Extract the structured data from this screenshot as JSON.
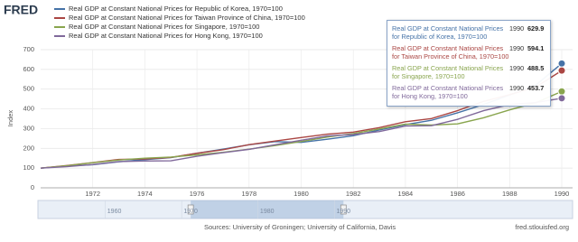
{
  "logo": "FRED",
  "chart_data": {
    "type": "line",
    "x": [
      1970,
      1971,
      1972,
      1973,
      1974,
      1975,
      1976,
      1977,
      1978,
      1979,
      1980,
      1981,
      1982,
      1983,
      1984,
      1985,
      1986,
      1987,
      1988,
      1989,
      1990
    ],
    "series": [
      {
        "name": "Real GDP at Constant National Prices for Republic of Korea, 1970=100",
        "color": "#4572a7",
        "values": [
          100,
          110,
          117,
          132,
          143,
          153,
          175,
          196,
          218,
          234,
          230,
          246,
          264,
          293,
          320,
          342,
          380,
          422,
          470,
          520,
          629.9
        ]
      },
      {
        "name": "Real GDP at Constant National Prices for Taiwan Province of China, 1970=100",
        "color": "#aa4643",
        "values": [
          100,
          113,
          128,
          144,
          146,
          154,
          175,
          193,
          219,
          237,
          255,
          272,
          282,
          305,
          335,
          351,
          391,
          438,
          472,
          510,
          594.1
        ]
      },
      {
        "name": "Real GDP at Constant National Prices for Singapore, 1970=100",
        "color": "#89a54e",
        "values": [
          100,
          112,
          127,
          141,
          150,
          156,
          167,
          180,
          196,
          214,
          235,
          257,
          275,
          298,
          323,
          318,
          324,
          355,
          395,
          431,
          488.5
        ]
      },
      {
        "name": "Real GDP at Constant National Prices for Hong Kong, 1970=100",
        "color": "#80699b",
        "values": [
          100,
          107,
          118,
          133,
          136,
          137,
          160,
          178,
          195,
          218,
          241,
          263,
          270,
          285,
          313,
          315,
          347,
          391,
          422,
          432,
          453.7
        ]
      }
    ],
    "ylabel": "Index",
    "xlim": [
      1970,
      1990
    ],
    "xticks": [
      1972,
      1974,
      1976,
      1978,
      1980,
      1982,
      1984,
      1986,
      1988,
      1990
    ],
    "ylim": [
      0,
      700
    ],
    "yticks": [
      0,
      100,
      200,
      300,
      400,
      500,
      600,
      700
    ],
    "grid": true,
    "navigator_xlim": [
      1950,
      2020
    ],
    "navigator_ticks": [
      1960,
      1970,
      1980,
      1990
    ]
  },
  "sources": "Sources: University of Groningen; University of California, Davis",
  "site": "fred.stlouisfed.org"
}
